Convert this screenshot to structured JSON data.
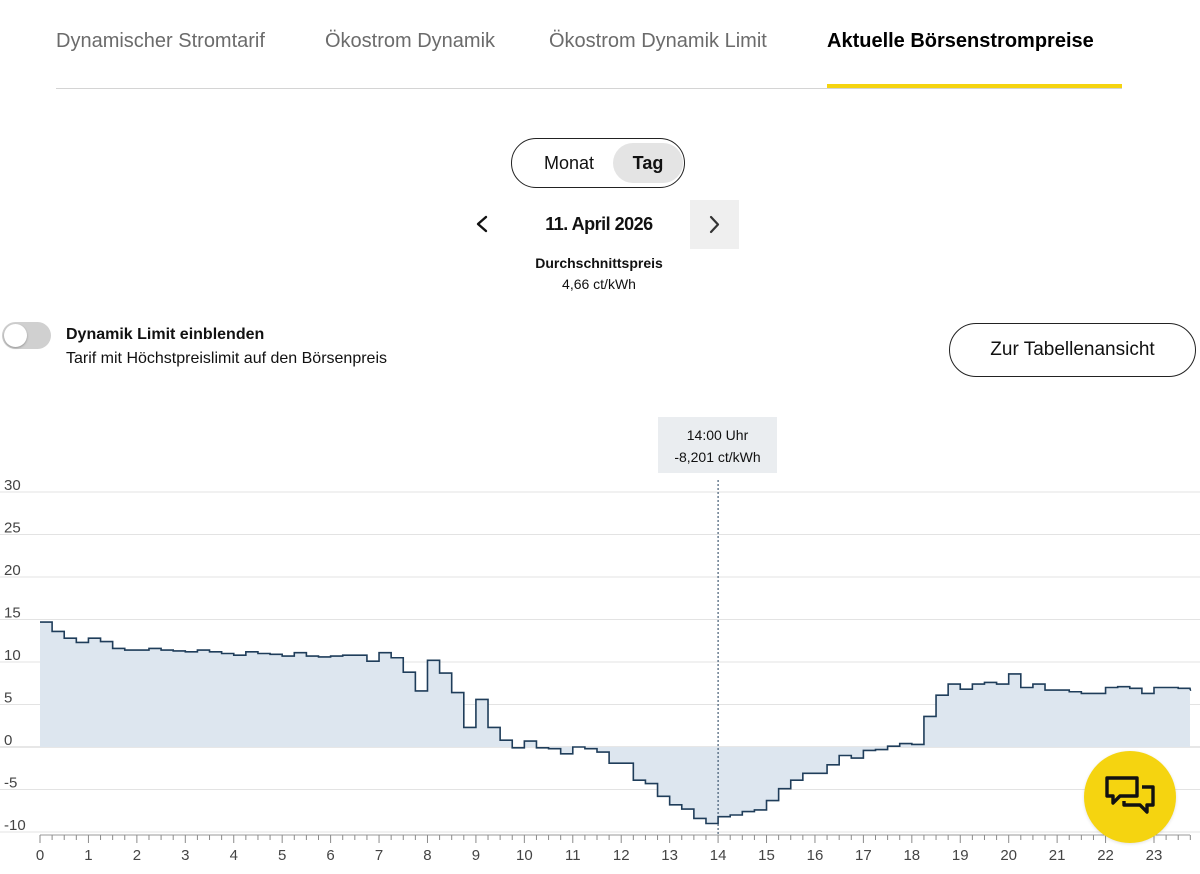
{
  "tabs": [
    {
      "label": "Dynamischer Stromtarif",
      "active": false
    },
    {
      "label": "Ökostrom Dynamik",
      "active": false
    },
    {
      "label": "Ökostrom Dynamik Limit",
      "active": false
    },
    {
      "label": "Aktuelle Börsenstrompreise",
      "active": true
    }
  ],
  "accent_color": "#f5d410",
  "view_toggle": {
    "month_label": "Monat",
    "day_label": "Tag",
    "selected": "Tag"
  },
  "date_nav": {
    "date": "11. April 2026",
    "prev_icon": "chevron-left-icon",
    "next_icon": "chevron-right-icon"
  },
  "average": {
    "label": "Durchschnittspreis",
    "value": "4,66 ct/kWh"
  },
  "dynamic_limit": {
    "title": "Dynamik Limit einblenden",
    "subtitle": "Tarif mit Höchstpreislimit auf den Börsenpreis",
    "enabled": false
  },
  "table_button": {
    "label": "Zur Tabellenansicht"
  },
  "tooltip": {
    "time": "14:00 Uhr",
    "value": "-8,201 ct/kWh"
  },
  "chat_icon": "chat-bubbles-icon",
  "chart_data": {
    "type": "area",
    "step": "post",
    "interval_minutes": 15,
    "fill_color": "#dde6ef",
    "line_color": "#1f3d5a",
    "ylim": [
      -10,
      30
    ],
    "yticks": [
      30,
      25,
      20,
      15,
      10,
      5,
      0,
      -5,
      -10
    ],
    "xlim": [
      0,
      23.75
    ],
    "xticks": [
      0,
      1,
      2,
      3,
      4,
      5,
      6,
      7,
      8,
      9,
      10,
      11,
      12,
      13,
      14,
      15,
      16,
      17,
      18,
      19,
      20,
      21,
      22,
      23
    ],
    "highlight_x": 14,
    "values": [
      14.7,
      13.6,
      12.8,
      12.3,
      12.8,
      12.4,
      11.6,
      11.4,
      11.4,
      11.6,
      11.4,
      11.3,
      11.2,
      11.4,
      11.2,
      11.0,
      10.8,
      11.2,
      11.0,
      10.9,
      10.7,
      11.1,
      10.7,
      10.6,
      10.7,
      10.8,
      10.8,
      10.1,
      11.1,
      10.5,
      8.8,
      6.6,
      10.2,
      8.7,
      6.4,
      2.3,
      5.6,
      2.3,
      0.8,
      -0.1,
      0.7,
      -0.1,
      -0.2,
      -0.8,
      0.0,
      -0.2,
      -0.6,
      -1.9,
      -1.9,
      -3.9,
      -4.3,
      -5.8,
      -6.8,
      -7.3,
      -8.4,
      -9.0,
      -8.201,
      -8.0,
      -7.6,
      -7.4,
      -6.3,
      -4.9,
      -3.9,
      -3.1,
      -3.1,
      -2.1,
      -1.0,
      -1.3,
      -0.4,
      -0.3,
      0.1,
      0.4,
      0.3,
      3.6,
      6.1,
      7.4,
      6.8,
      7.4,
      7.6,
      7.4,
      8.6,
      7.0,
      7.4,
      6.7,
      6.7,
      6.5,
      6.3,
      6.3,
      7.0,
      7.1,
      6.9,
      6.3,
      7.0,
      7.0,
      6.9,
      6.7
    ]
  }
}
